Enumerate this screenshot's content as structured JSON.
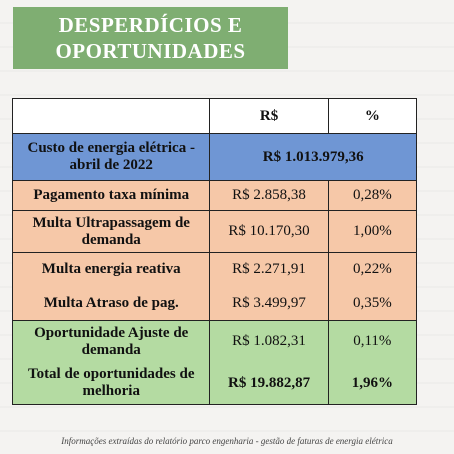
{
  "title": {
    "line1": "DESPERDÍCIOS E",
    "line2": "OPORTUNIDADES"
  },
  "table": {
    "headers": {
      "col1": "",
      "col2": "R$",
      "col3": "%"
    },
    "rows": [
      {
        "label": "Custo de energia elétrica - abril de 2022",
        "value": "R$ 1.013.979,36",
        "percent": ""
      },
      {
        "label": "Pagamento taxa mínima",
        "value": "R$ 2.858,38",
        "percent": "0,28%"
      },
      {
        "label": "Multa Ultrapassagem de demanda",
        "value": "R$ 10.170,30",
        "percent": "1,00%"
      },
      {
        "label": "Multa energia reativa",
        "value": "R$ 2.271,91",
        "percent": "0,22%"
      },
      {
        "label": "Multa Atraso de pag.",
        "value": "R$ 3.499,97",
        "percent": "0,35%"
      },
      {
        "label": "Oportunidade Ajuste de demanda",
        "value": "R$ 1.082,31",
        "percent": "0,11%"
      },
      {
        "label": "Total de oportunidades de melhoria",
        "value": "R$ 19.882,87",
        "percent": "1,96%"
      }
    ]
  },
  "footer": "Informações extraídas do relatório parco engenharia - gestão de faturas de energia elétrica",
  "colors": {
    "title_bg": "#7fae72",
    "blue": "#6f96d4",
    "orange": "#f6c8a8",
    "green": "#b4dba2"
  }
}
